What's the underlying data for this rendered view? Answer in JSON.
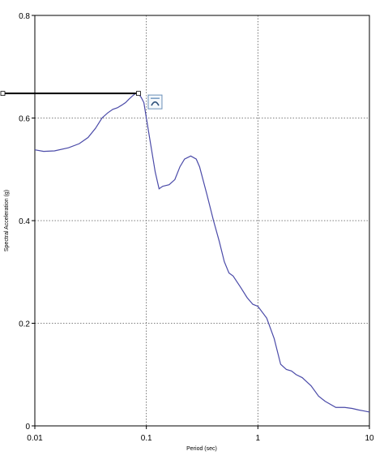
{
  "chart_data": {
    "type": "line",
    "title": "",
    "xlabel": "Period (sec)",
    "ylabel": "Spectral Acceleration (g)",
    "x_scale": "log",
    "xlim": [
      0.01,
      10
    ],
    "ylim": [
      0,
      0.8
    ],
    "x_ticks": [
      "0.01",
      "0.1",
      "1",
      "10"
    ],
    "y_ticks": [
      "0",
      "0.2",
      "0.4",
      "0.6",
      "0.8"
    ],
    "grid": true,
    "legend": "none",
    "series_color": "#4a4aa8",
    "marker_line_color": "#000000",
    "marker_line": {
      "x_start": 0.01,
      "x_end": 0.085,
      "y": 0.648
    },
    "series": [
      {
        "values": [
          [
            0.01,
            0.538
          ],
          [
            0.012,
            0.535
          ],
          [
            0.015,
            0.536
          ],
          [
            0.02,
            0.542
          ],
          [
            0.025,
            0.55
          ],
          [
            0.03,
            0.562
          ],
          [
            0.035,
            0.58
          ],
          [
            0.04,
            0.6
          ],
          [
            0.045,
            0.61
          ],
          [
            0.05,
            0.617
          ],
          [
            0.055,
            0.62
          ],
          [
            0.06,
            0.625
          ],
          [
            0.065,
            0.63
          ],
          [
            0.07,
            0.637
          ],
          [
            0.075,
            0.643
          ],
          [
            0.08,
            0.648
          ],
          [
            0.085,
            0.647
          ],
          [
            0.09,
            0.64
          ],
          [
            0.095,
            0.63
          ],
          [
            0.1,
            0.6
          ],
          [
            0.11,
            0.545
          ],
          [
            0.12,
            0.495
          ],
          [
            0.13,
            0.462
          ],
          [
            0.14,
            0.467
          ],
          [
            0.16,
            0.47
          ],
          [
            0.18,
            0.48
          ],
          [
            0.2,
            0.505
          ],
          [
            0.22,
            0.52
          ],
          [
            0.25,
            0.526
          ],
          [
            0.28,
            0.52
          ],
          [
            0.3,
            0.505
          ],
          [
            0.35,
            0.45
          ],
          [
            0.4,
            0.4
          ],
          [
            0.45,
            0.36
          ],
          [
            0.5,
            0.32
          ],
          [
            0.55,
            0.298
          ],
          [
            0.6,
            0.292
          ],
          [
            0.7,
            0.27
          ],
          [
            0.8,
            0.25
          ],
          [
            0.9,
            0.237
          ],
          [
            1.0,
            0.233
          ],
          [
            1.2,
            0.21
          ],
          [
            1.4,
            0.17
          ],
          [
            1.6,
            0.12
          ],
          [
            1.8,
            0.11
          ],
          [
            2.0,
            0.107
          ],
          [
            2.2,
            0.1
          ],
          [
            2.5,
            0.094
          ],
          [
            3.0,
            0.078
          ],
          [
            3.5,
            0.058
          ],
          [
            4.0,
            0.048
          ],
          [
            5.0,
            0.036
          ],
          [
            6.0,
            0.036
          ],
          [
            7.0,
            0.034
          ],
          [
            8.0,
            0.031
          ],
          [
            9.0,
            0.029
          ],
          [
            10.0,
            0.027
          ]
        ]
      }
    ]
  }
}
